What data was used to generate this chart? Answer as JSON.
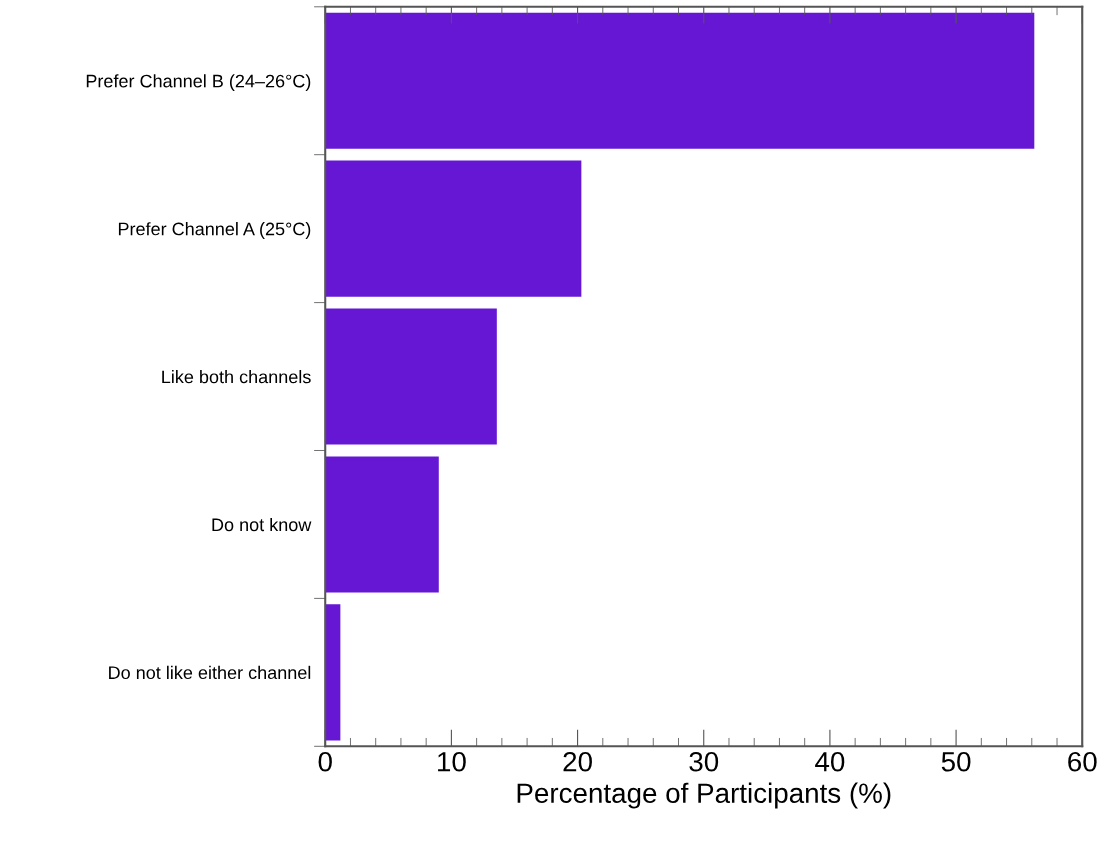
{
  "chart_data": {
    "type": "bar",
    "orientation": "horizontal",
    "xlabel": "Percentage of Participants (%)",
    "categories": [
      "Prefer Channel B (24–26°C)",
      "Prefer Channel A (25°C)",
      "Like both channels",
      "Do not know",
      "Do not like either channel"
    ],
    "values": [
      56.2,
      20.3,
      13.6,
      9.0,
      1.2
    ],
    "color": "#6617d4",
    "xlim": [
      0,
      60
    ],
    "xticks": [
      0,
      10,
      20,
      30,
      40,
      50,
      60
    ],
    "grid": false,
    "legend": false
  }
}
